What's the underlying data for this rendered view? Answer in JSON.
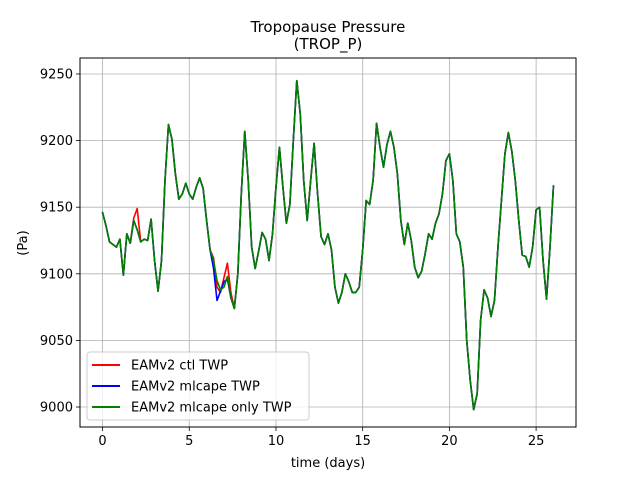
{
  "chart_data": {
    "type": "line",
    "title": "Tropopause Pressure",
    "subtitle": "(TROP_P)",
    "xlabel": "time (days)",
    "ylabel": "(Pa)",
    "xlim": [
      -1.3,
      27.3
    ],
    "ylim": [
      8985,
      9262
    ],
    "xticks": [
      0,
      5,
      10,
      15,
      20,
      25
    ],
    "yticks": [
      9000,
      9050,
      9100,
      9150,
      9200,
      9250
    ],
    "grid": true,
    "legend_position": "lower-left",
    "base_x": [
      0,
      0.2,
      0.4,
      0.6,
      0.8,
      1.0,
      1.2,
      1.4,
      1.6,
      1.8,
      2.0,
      2.2,
      2.4,
      2.6,
      2.8,
      3.0,
      3.2,
      3.4,
      3.6,
      3.8,
      4.0,
      4.2,
      4.4,
      4.6,
      4.8,
      5.0,
      5.2,
      5.4,
      5.6,
      5.8,
      6.0,
      6.2,
      6.4,
      6.6,
      6.8,
      7.0,
      7.2,
      7.4,
      7.6,
      7.8,
      8.0,
      8.2,
      8.4,
      8.6,
      8.8,
      9.0,
      9.2,
      9.4,
      9.6,
      9.8,
      10.0,
      10.2,
      10.4,
      10.6,
      10.8,
      11.0,
      11.2,
      11.4,
      11.6,
      11.8,
      12.0,
      12.2,
      12.4,
      12.6,
      12.8,
      13.0,
      13.2,
      13.4,
      13.6,
      13.8,
      14.0,
      14.2,
      14.4,
      14.6,
      14.8,
      15.0,
      15.2,
      15.4,
      15.6,
      15.8,
      16.0,
      16.2,
      16.4,
      16.6,
      16.8,
      17.0,
      17.2,
      17.4,
      17.6,
      17.8,
      18.0,
      18.2,
      18.4,
      18.6,
      18.8,
      19.0,
      19.2,
      19.4,
      19.6,
      19.8,
      20.0,
      20.2,
      20.4,
      20.6,
      20.8,
      21.0,
      21.2,
      21.4,
      21.6,
      21.8,
      22.0,
      22.2,
      22.4,
      22.6,
      22.8,
      23.0,
      23.2,
      23.4,
      23.6,
      23.8,
      24.0,
      24.2,
      24.4,
      24.6,
      24.8,
      25.0,
      25.2,
      25.4,
      25.6,
      25.8,
      26.0
    ],
    "base_y": [
      9146,
      9136,
      9124,
      9122,
      9120,
      9126,
      9099,
      9130,
      9123,
      9140,
      9133,
      9124,
      9126,
      9125,
      9141,
      9110,
      9087,
      9110,
      9170,
      9212,
      9201,
      9175,
      9156,
      9160,
      9168,
      9160,
      9156,
      9165,
      9172,
      9164,
      9140,
      9118,
      9110,
      9095,
      9088,
      9090,
      9098,
      9082,
      9074,
      9100,
      9160,
      9207,
      9170,
      9120,
      9104,
      9117,
      9131,
      9126,
      9110,
      9130,
      9165,
      9195,
      9165,
      9138,
      9152,
      9200,
      9245,
      9220,
      9170,
      9140,
      9170,
      9198,
      9160,
      9128,
      9122,
      9130,
      9118,
      9090,
      9078,
      9086,
      9100,
      9094,
      9086,
      9086,
      9090,
      9118,
      9155,
      9152,
      9170,
      9213,
      9195,
      9180,
      9197,
      9207,
      9195,
      9175,
      9140,
      9122,
      9138,
      9125,
      9105,
      9097,
      9102,
      9115,
      9130,
      9126,
      9138,
      9145,
      9160,
      9185,
      9190,
      9170,
      9130,
      9124,
      9105,
      9050,
      9020,
      8998,
      9010,
      9065,
      9088,
      9082,
      9068,
      9080,
      9120,
      9155,
      9190,
      9206,
      9192,
      9170,
      9140,
      9114,
      9113,
      9105,
      9120,
      9148,
      9150,
      9110,
      9081,
      9120,
      9166
    ],
    "series": [
      {
        "name": "EAMv2 ctl TWP",
        "color": "#ff0000",
        "overrides": [
          [
            1.8,
            9142
          ],
          [
            2.0,
            9149
          ],
          [
            6.4,
            9112
          ],
          [
            6.6,
            9090
          ],
          [
            6.8,
            9086
          ],
          [
            7.0,
            9097
          ],
          [
            7.2,
            9108
          ],
          [
            7.4,
            9086
          ]
        ]
      },
      {
        "name": "EAMv2 mlcape TWP",
        "color": "#0000ff",
        "overrides": [
          [
            6.4,
            9104
          ],
          [
            6.6,
            9080
          ],
          [
            6.8,
            9087
          ],
          [
            7.0,
            9094
          ],
          [
            7.2,
            9096
          ]
        ]
      },
      {
        "name": "EAMv2 mlcape only TWP",
        "color": "#008000",
        "overrides": []
      }
    ]
  }
}
